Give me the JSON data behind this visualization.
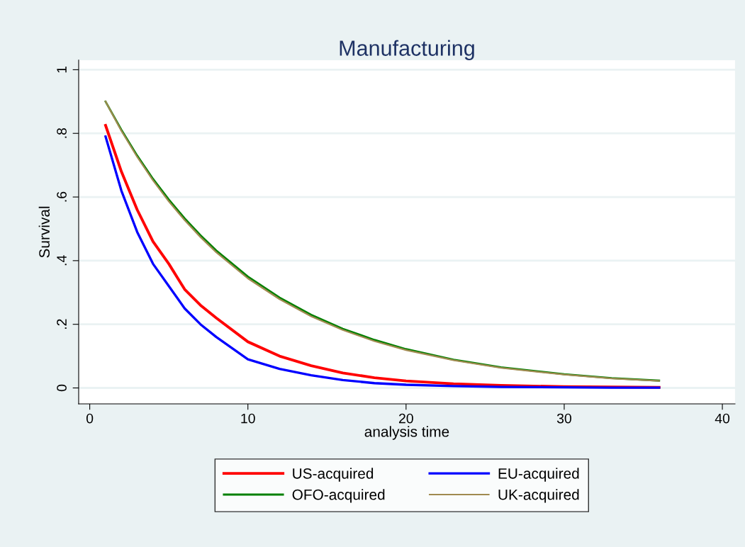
{
  "chart_data": {
    "type": "line",
    "title": "Manufacturing",
    "xlabel": "analysis time",
    "ylabel": "Survival",
    "x": [
      1,
      2,
      3,
      4,
      5,
      6,
      7,
      8,
      10,
      12,
      14,
      16,
      18,
      20,
      23,
      26,
      30,
      33,
      36
    ],
    "series": [
      {
        "name": "US-acquired",
        "color": "#ff0000",
        "values": [
          0.825,
          0.68,
          0.56,
          0.46,
          0.39,
          0.31,
          0.26,
          0.22,
          0.145,
          0.1,
          0.07,
          0.047,
          0.032,
          0.022,
          0.013,
          0.008,
          0.004,
          0.003,
          0.002
        ]
      },
      {
        "name": "EU-acquired",
        "color": "#0000ff",
        "values": [
          0.79,
          0.62,
          0.49,
          0.39,
          0.32,
          0.25,
          0.2,
          0.16,
          0.09,
          0.06,
          0.04,
          0.025,
          0.015,
          0.01,
          0.006,
          0.003,
          0.002,
          0.001,
          0.001
        ]
      },
      {
        "name": "OFO-acquired",
        "color": "#008000",
        "values": [
          0.9,
          0.811,
          0.73,
          0.657,
          0.592,
          0.533,
          0.48,
          0.432,
          0.35,
          0.284,
          0.23,
          0.186,
          0.151,
          0.122,
          0.089,
          0.065,
          0.043,
          0.031,
          0.023
        ]
      },
      {
        "name": "UK-acquired",
        "color": "#a08a50",
        "values": [
          0.9,
          0.808,
          0.726,
          0.652,
          0.586,
          0.527,
          0.474,
          0.426,
          0.344,
          0.279,
          0.225,
          0.182,
          0.147,
          0.119,
          0.087,
          0.063,
          0.042,
          0.03,
          0.022
        ]
      }
    ],
    "xlim": [
      -0.7,
      40.8
    ],
    "xticks": [
      0,
      10,
      20,
      30,
      40
    ],
    "ylim": [
      -0.05,
      1.03
    ],
    "yticks": [
      {
        "value": 0,
        "label": "0"
      },
      {
        "value": 0.2,
        "label": ".2"
      },
      {
        "value": 0.4,
        "label": ".4"
      },
      {
        "value": 0.6,
        "label": ".6"
      },
      {
        "value": 0.8,
        "label": ".8"
      },
      {
        "value": 1,
        "label": "1"
      }
    ],
    "grid": "y",
    "legend": "bottom",
    "marker": "none",
    "line_style": "solid"
  }
}
